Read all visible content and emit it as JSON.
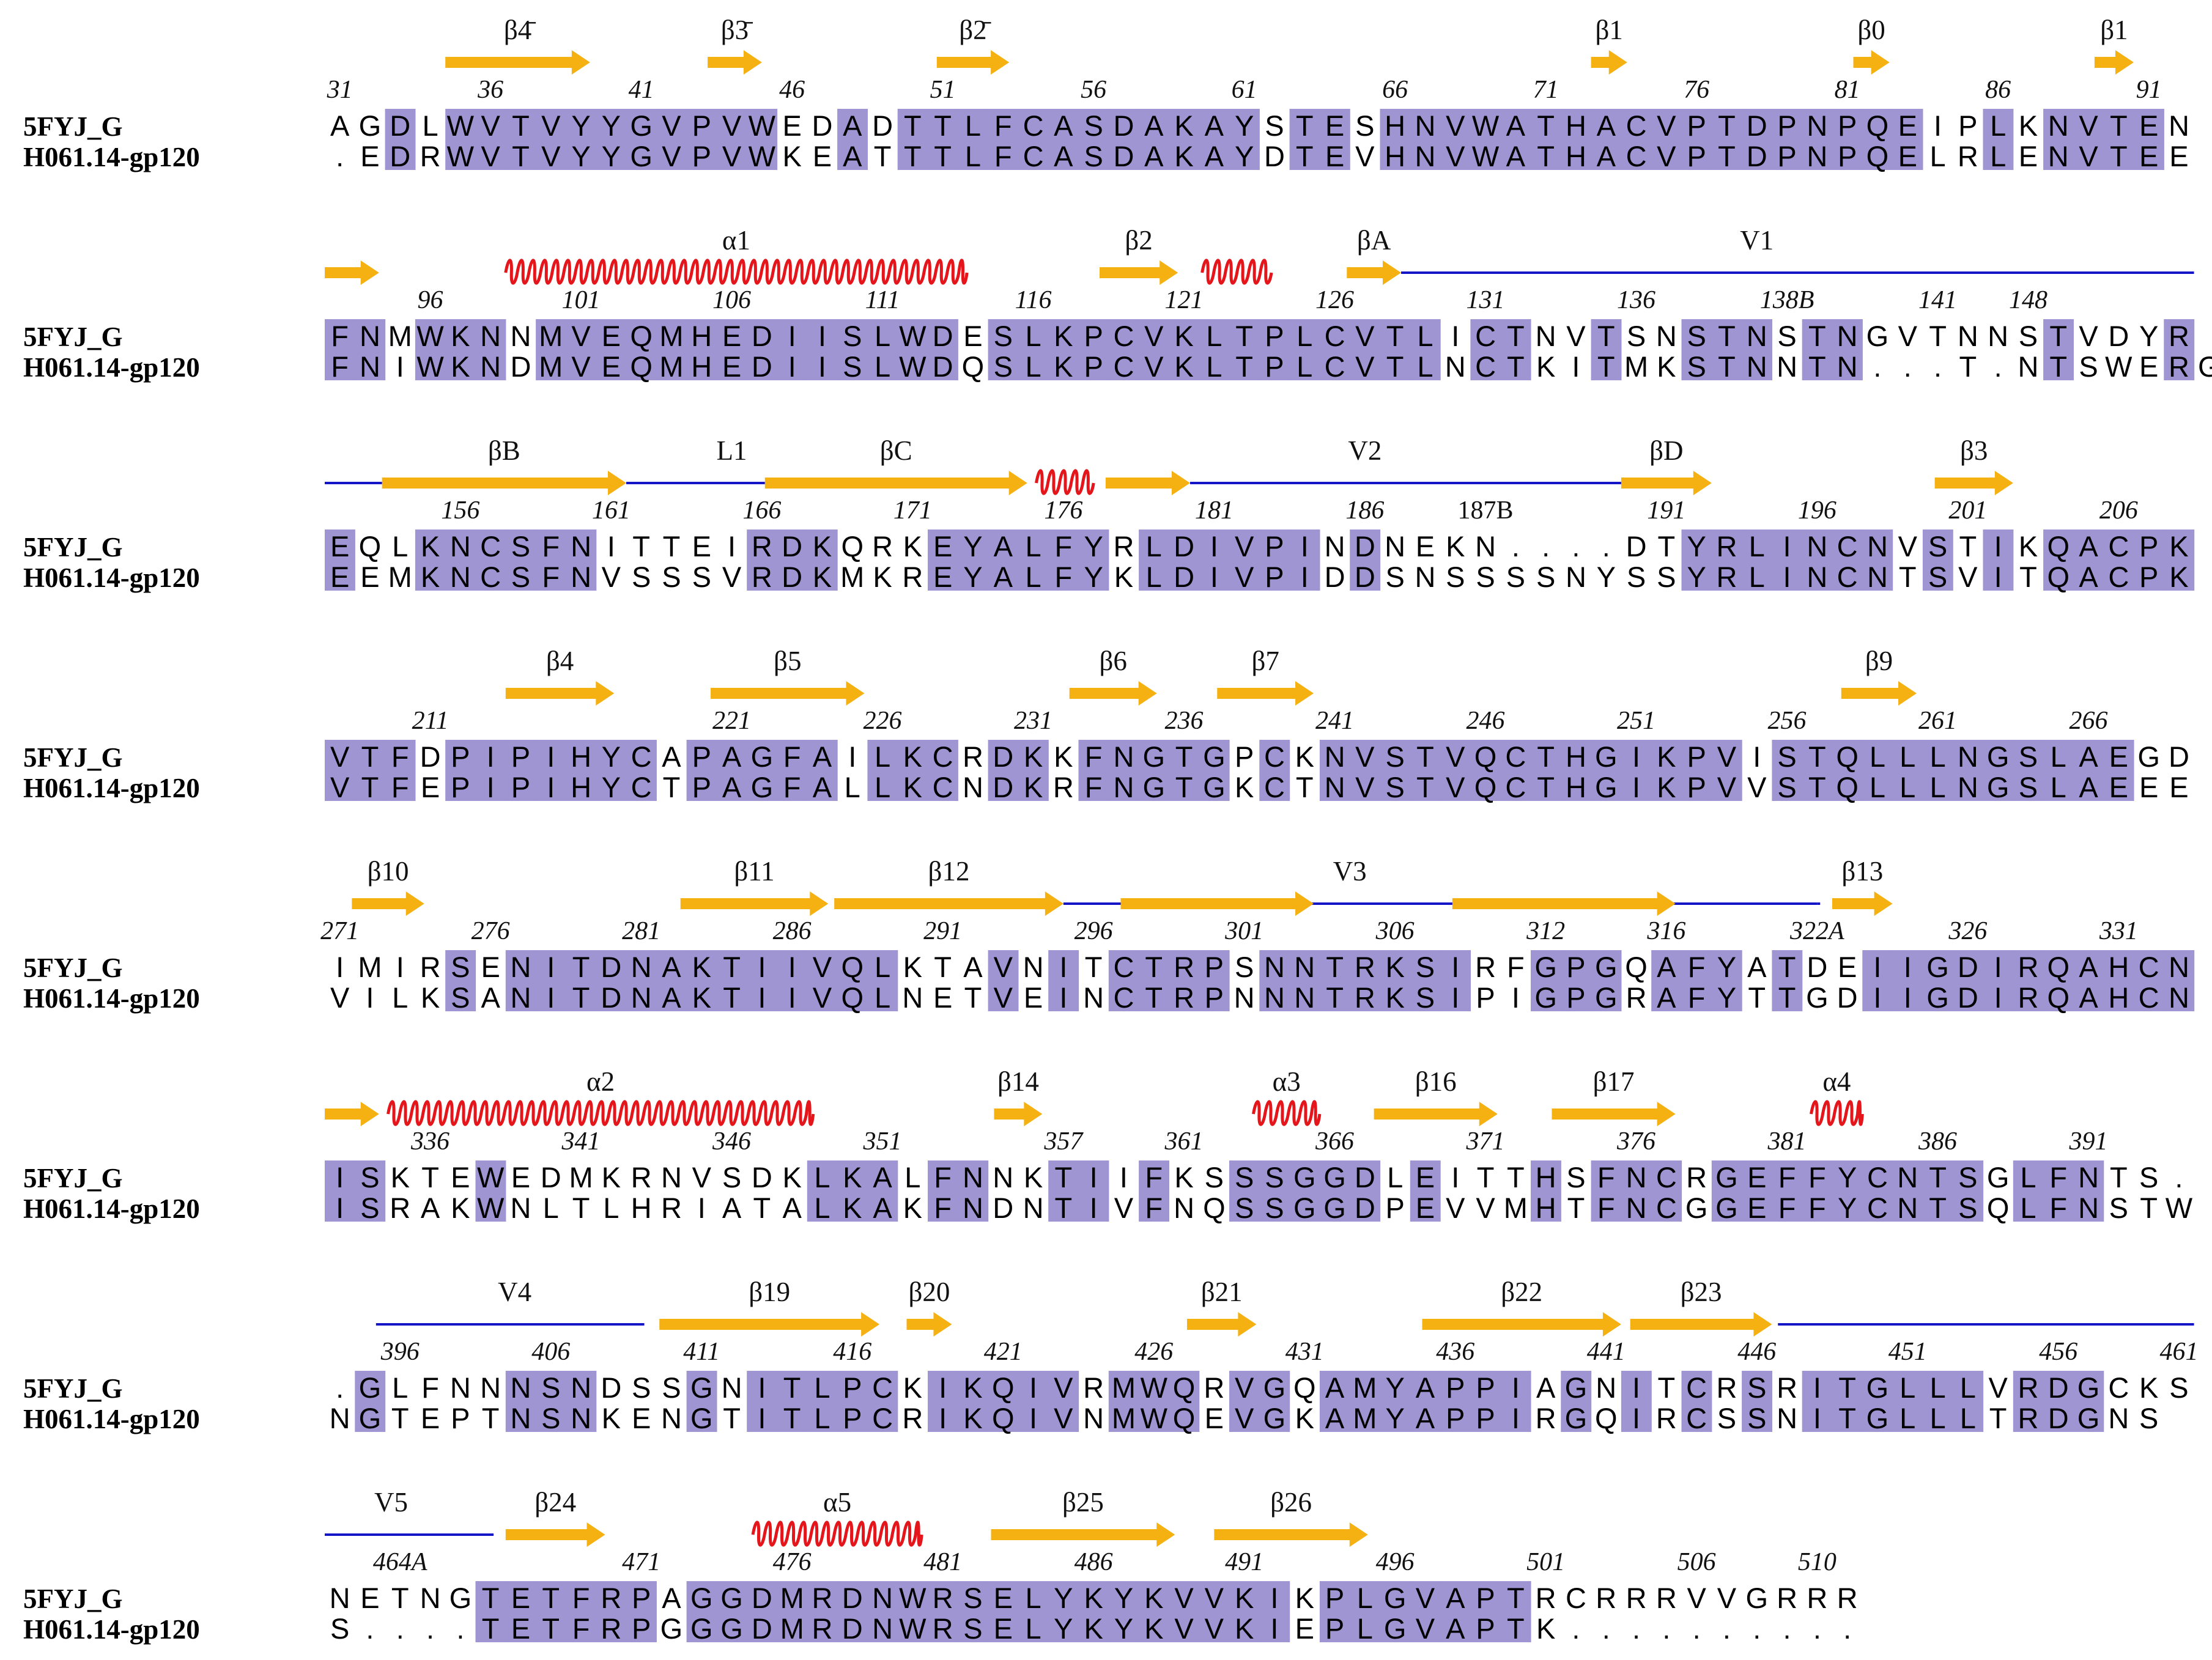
{
  "sequences": [
    "5FYJ_G",
    "H061.14-gp120"
  ],
  "colors": {
    "identical_highlight": "#9f95d3",
    "strand": "#f5b012",
    "helix": "#e4161b",
    "loop": "#1515c8"
  },
  "rows": [
    {
      "seq1": "AGDLWVTVYYGVPVWEDADTTLFCASDAKAYSTESHNVWATHACVPTDPNPQEIPLKNVTEN",
      "seq2": ".EDRWVTVYYGVPVWKEATTTLFCASDAKAYDTEVHNVWATHACVPTDPNPQELRLENVTEE",
      "numbers": [
        [
          0,
          "31"
        ],
        [
          5,
          "36"
        ],
        [
          10,
          "41"
        ],
        [
          15,
          "46"
        ],
        [
          20,
          "51"
        ],
        [
          25,
          "56"
        ],
        [
          30,
          "61"
        ],
        [
          35,
          "66"
        ],
        [
          40,
          "71"
        ],
        [
          45,
          "76"
        ],
        [
          50,
          "81"
        ],
        [
          55,
          "86"
        ],
        [
          60,
          "91"
        ]
      ],
      "ss": [
        {
          "t": "E",
          "s": 4,
          "e": 8.8,
          "label": "β4̄"
        },
        {
          "t": "E",
          "s": 12.7,
          "e": 14.5,
          "label": "β3̄"
        },
        {
          "t": "E",
          "s": 20.3,
          "e": 22.7,
          "label": "β2̄"
        },
        {
          "t": "E",
          "s": 42,
          "e": 43.2,
          "label": "β1"
        },
        {
          "t": "E",
          "s": 50.7,
          "e": 51.9,
          "label": "β0"
        },
        {
          "t": "E",
          "s": 58.7,
          "e": 60,
          "label": "β1"
        }
      ]
    },
    {
      "seq1": "FNMWKNNMVEQMHEDIISLWDESLKPCVKLTPLCVTLICTNVTSNSTNSTNGVTNNSTVDYR",
      "seq2": "FNIWKNDMVEQMHEDIISLWDQSLKPCVKLTPLCVTLNCTKITMKSTNNTN...T.NTSWERG",
      "numbers": [
        [
          3,
          "96"
        ],
        [
          8,
          "101"
        ],
        [
          13,
          "106"
        ],
        [
          18,
          "111"
        ],
        [
          23,
          "116"
        ],
        [
          28,
          "121"
        ],
        [
          33,
          "126"
        ],
        [
          38,
          "131"
        ],
        [
          43,
          "136"
        ],
        [
          48,
          "138B"
        ],
        [
          53,
          "141"
        ],
        [
          56,
          "148"
        ]
      ],
      "ss": [
        {
          "t": "E",
          "s": 0,
          "e": 1.8,
          "label": ""
        },
        {
          "t": "H",
          "s": 6,
          "e": 21.3,
          "label": "α1"
        },
        {
          "t": "E",
          "s": 25.7,
          "e": 28.3,
          "label": "β2"
        },
        {
          "t": "H",
          "s": 29.1,
          "e": 31.4,
          "label": ""
        },
        {
          "t": "E",
          "s": 33.9,
          "e": 35.7,
          "label": "βA"
        },
        {
          "t": "L",
          "s": 35.7,
          "e": 62,
          "label": "V1",
          "labelAt": 47.5
        }
      ]
    },
    {
      "seq1": "EQLKNCSFNITTEIRDKQRKEYALFYRLDIVPINDNEKN....DTYRLINCNVSTIKQACPK",
      "seq2": "EEMKNCSFNVSSSVRDKMKREYALFYKLDIVPIDDSNSSSSNYSSYRLINCNTSVITQACPK",
      "numbers": [
        [
          4,
          "156"
        ],
        [
          9,
          "161"
        ],
        [
          14,
          "166"
        ],
        [
          19,
          "171"
        ],
        [
          24,
          "176"
        ],
        [
          29,
          "181"
        ],
        [
          34,
          "186"
        ],
        [
          38,
          "187B"
        ],
        [
          44,
          "191"
        ],
        [
          49,
          "196"
        ],
        [
          54,
          "201"
        ],
        [
          59,
          "206"
        ]
      ],
      "ss": [
        {
          "t": "L",
          "s": 0,
          "e": 1.9,
          "label": ""
        },
        {
          "t": "E",
          "s": 1.9,
          "e": 10,
          "label": "βB"
        },
        {
          "t": "L",
          "s": 10,
          "e": 14.6,
          "label": "L1",
          "labelAt": 13.5
        },
        {
          "t": "E",
          "s": 14.6,
          "e": 23.3,
          "label": "βC"
        },
        {
          "t": "H",
          "s": 23.6,
          "e": 25.5,
          "label": ""
        },
        {
          "t": "E",
          "s": 25.9,
          "e": 28.7,
          "label": ""
        },
        {
          "t": "L",
          "s": 28.7,
          "e": 43,
          "label": "V2",
          "labelAt": 34.5
        },
        {
          "t": "E",
          "s": 43,
          "e": 46,
          "label": "βD"
        },
        {
          "t": "E",
          "s": 53.4,
          "e": 56,
          "label": "β3"
        }
      ]
    },
    {
      "seq1": "VTFDPIPIHYCAPAGFAILKCRDKKFNGTGPCKNVSTVQCTHGIKPVISTQLLLNGSLAEGD",
      "seq2": "VTFEPIPIHYCTPAGFALLKCNDKRFNGTGKCTNVSTVQCTHGIKPVVSTQLLLNGSLAEEE",
      "numbers": [
        [
          3,
          "211"
        ],
        [
          13,
          "221"
        ],
        [
          18,
          "226"
        ],
        [
          23,
          "231"
        ],
        [
          28,
          "236"
        ],
        [
          33,
          "241"
        ],
        [
          38,
          "246"
        ],
        [
          43,
          "251"
        ],
        [
          48,
          "256"
        ],
        [
          53,
          "261"
        ],
        [
          58,
          "266"
        ]
      ],
      "ss": [
        {
          "t": "E",
          "s": 6,
          "e": 9.6,
          "label": "β4"
        },
        {
          "t": "E",
          "s": 12.8,
          "e": 17.9,
          "label": "β5"
        },
        {
          "t": "E",
          "s": 24.7,
          "e": 27.6,
          "label": "β6"
        },
        {
          "t": "E",
          "s": 29.6,
          "e": 32.8,
          "label": "β7"
        },
        {
          "t": "E",
          "s": 50.3,
          "e": 52.8,
          "label": "β9"
        }
      ]
    },
    {
      "seq1": "IMIRSENITDNAKTIIVQLKTAVNITCTRPSNNTRKSIRFGPGQAFYATDEIIGDIRQAHCN",
      "seq2": "VILKSANITDNAKTIIVQLNETVEINCTRPNNNTRKSIPIGPGRAFYTTGDIIGDIRQAHCN",
      "numbers": [
        [
          0,
          "271"
        ],
        [
          5,
          "276"
        ],
        [
          10,
          "281"
        ],
        [
          15,
          "286"
        ],
        [
          20,
          "291"
        ],
        [
          25,
          "296"
        ],
        [
          30,
          "301"
        ],
        [
          35,
          "306"
        ],
        [
          40,
          "312"
        ],
        [
          44,
          "316"
        ],
        [
          49,
          "322A"
        ],
        [
          54,
          "326"
        ],
        [
          59,
          "331"
        ]
      ],
      "ss": [
        {
          "t": "E",
          "s": 0.9,
          "e": 3.3,
          "label": "β10"
        },
        {
          "t": "E",
          "s": 11.8,
          "e": 16.7,
          "label": "β11"
        },
        {
          "t": "E",
          "s": 16.9,
          "e": 24.5,
          "label": "β12"
        },
        {
          "t": "L",
          "s": 24.5,
          "e": 49.5,
          "label": "V3",
          "labelAt": 34
        },
        {
          "t": "E",
          "s": 26.4,
          "e": 32.8,
          "label": ""
        },
        {
          "t": "E",
          "s": 37.4,
          "e": 44.8,
          "label": ""
        },
        {
          "t": "L",
          "s": 49.5,
          "e": 49.6,
          "label": ""
        },
        {
          "t": "E",
          "s": 50,
          "e": 52,
          "label": "β13"
        }
      ]
    },
    {
      "seq1": "ISKTEWEDMKRNVSDKLKALFNNKTIIFKSSSGGDLEITTHSFNCRGEFFYCNTSGLFNTS.",
      "seq2": "ISRAKWNLTLHRIATALKAKFNDNTIVFNQSSGGDPEVVMHTFNCGGEFFYCNTSQLFNSTW",
      "numbers": [
        [
          3,
          "336"
        ],
        [
          8,
          "341"
        ],
        [
          13,
          "346"
        ],
        [
          18,
          "351"
        ],
        [
          24,
          "357"
        ],
        [
          28,
          "361"
        ],
        [
          33,
          "366"
        ],
        [
          38,
          "371"
        ],
        [
          43,
          "376"
        ],
        [
          48,
          "381"
        ],
        [
          53,
          "386"
        ],
        [
          58,
          "391"
        ]
      ],
      "ss": [
        {
          "t": "E",
          "s": 0,
          "e": 1.8,
          "label": ""
        },
        {
          "t": "H",
          "s": 2.1,
          "e": 16.2,
          "label": "α2"
        },
        {
          "t": "E",
          "s": 22.2,
          "e": 23.8,
          "label": "β14"
        },
        {
          "t": "H",
          "s": 30.8,
          "e": 33,
          "label": "α3"
        },
        {
          "t": "E",
          "s": 34.8,
          "e": 38.9,
          "label": "β16"
        },
        {
          "t": "E",
          "s": 40.7,
          "e": 44.8,
          "label": "β17"
        },
        {
          "t": "H",
          "s": 49.3,
          "e": 51,
          "label": "α4"
        }
      ]
    },
    {
      "seq1": ".GLFNNNSNDSSGNITLPCKIKQIVRMWQRVGQAMYAPPIAGNITCRSRITGLLLVRDGCKS",
      "seq2": "NGTEPTNSNKENGTITLPCRIKQIVNMWQEVGKAMYAPPIRGQIRCSSNITGLLLTRDGNS",
      "numbers": [
        [
          2,
          "396"
        ],
        [
          7,
          "406"
        ],
        [
          12,
          "411"
        ],
        [
          17,
          "416"
        ],
        [
          22,
          "421"
        ],
        [
          27,
          "426"
        ],
        [
          32,
          "431"
        ],
        [
          37,
          "436"
        ],
        [
          42,
          "441"
        ],
        [
          47,
          "446"
        ],
        [
          52,
          "451"
        ],
        [
          57,
          "456"
        ],
        [
          61,
          "461"
        ]
      ],
      "ss": [
        {
          "t": "L",
          "s": 1.7,
          "e": 10.6,
          "label": "V4",
          "labelAt": 6.3
        },
        {
          "t": "E",
          "s": 11.1,
          "e": 18.4,
          "label": "β19"
        },
        {
          "t": "E",
          "s": 19.3,
          "e": 20.8,
          "label": "β20"
        },
        {
          "t": "E",
          "s": 28.6,
          "e": 30.9,
          "label": "β21"
        },
        {
          "t": "E",
          "s": 36.4,
          "e": 43,
          "label": "β22"
        },
        {
          "t": "E",
          "s": 43.3,
          "e": 48,
          "label": "β23"
        },
        {
          "t": "L",
          "s": 48.2,
          "e": 62,
          "label": ""
        }
      ]
    },
    {
      "seq1": "NETNGTETFRPAGGDMRDNWRSELYKYKVVKIKPLGVAPTRCRRRVVGRRR",
      "seq2": "S....TETFRPGGGDMRDNWRSELYKYKVVKIEPLGVAPTK..........",
      "numbers": [
        [
          2,
          "464A"
        ],
        [
          10,
          "471"
        ],
        [
          15,
          "476"
        ],
        [
          20,
          "481"
        ],
        [
          25,
          "486"
        ],
        [
          30,
          "491"
        ],
        [
          35,
          "496"
        ],
        [
          40,
          "501"
        ],
        [
          45,
          "506"
        ],
        [
          49,
          "510"
        ]
      ],
      "ss": [
        {
          "t": "L",
          "s": 0,
          "e": 5.6,
          "label": "V5",
          "labelAt": 2.2
        },
        {
          "t": "E",
          "s": 6,
          "e": 9.3,
          "label": "β24"
        },
        {
          "t": "H",
          "s": 14.2,
          "e": 19.8,
          "label": "α5"
        },
        {
          "t": "E",
          "s": 22.1,
          "e": 28.2,
          "label": "β25"
        },
        {
          "t": "E",
          "s": 29.5,
          "e": 34.6,
          "label": "β26"
        }
      ]
    }
  ]
}
